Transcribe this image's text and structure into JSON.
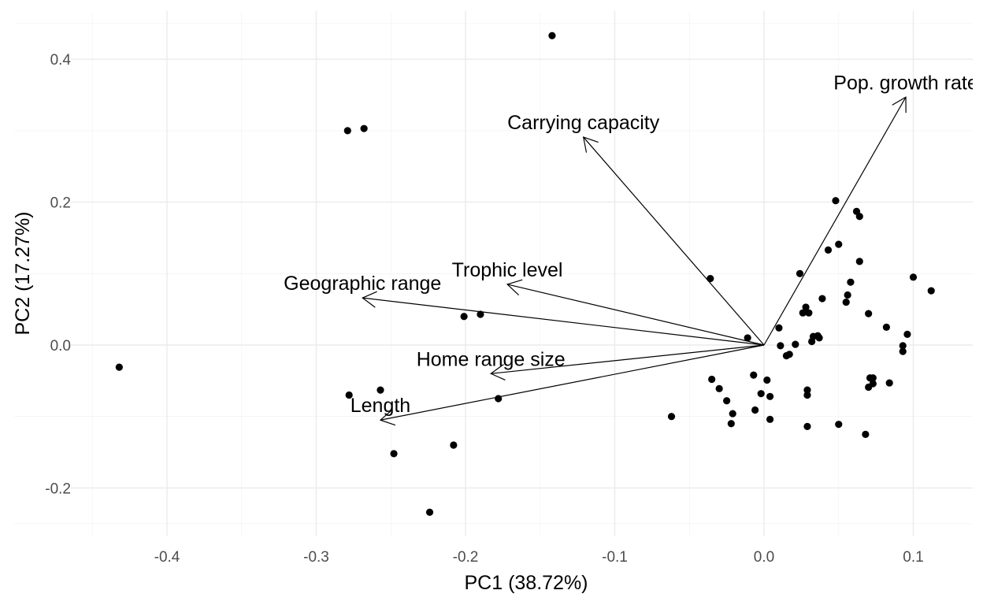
{
  "chart_data": {
    "type": "scatter",
    "title": "",
    "xlabel": "PC1 (38.72%)",
    "ylabel": "PC2 (17.27%)",
    "xlim": [
      -0.455,
      0.14
    ],
    "ylim": [
      -0.26,
      0.465
    ],
    "grid": true,
    "x_ticks": [
      -0.4,
      -0.3,
      -0.2,
      -0.1,
      0.0,
      0.1
    ],
    "x_tick_labels": [
      "-0.4",
      "-0.3",
      "-0.2",
      "-0.1",
      "0.0",
      "0.1"
    ],
    "y_ticks": [
      -0.2,
      0.0,
      0.2,
      0.4
    ],
    "y_tick_labels": [
      "-0.2",
      "0.0",
      "0.2",
      "0.4"
    ],
    "points": [
      [
        -0.142,
        0.433
      ],
      [
        -0.279,
        0.3
      ],
      [
        -0.268,
        0.303
      ],
      [
        -0.432,
        -0.031
      ],
      [
        -0.201,
        0.04
      ],
      [
        -0.19,
        0.043
      ],
      [
        -0.278,
        -0.07
      ],
      [
        -0.257,
        -0.063
      ],
      [
        -0.178,
        -0.075
      ],
      [
        -0.248,
        -0.152
      ],
      [
        -0.208,
        -0.14
      ],
      [
        -0.224,
        -0.234
      ],
      [
        -0.036,
        0.093
      ],
      [
        -0.062,
        -0.1
      ],
      [
        -0.011,
        0.01
      ],
      [
        -0.035,
        -0.048
      ],
      [
        -0.03,
        -0.061
      ],
      [
        -0.025,
        -0.078
      ],
      [
        -0.021,
        -0.096
      ],
      [
        -0.022,
        -0.11
      ],
      [
        -0.007,
        -0.042
      ],
      [
        -0.006,
        -0.091
      ],
      [
        -0.002,
        -0.068
      ],
      [
        0.002,
        -0.049
      ],
      [
        0.004,
        -0.072
      ],
      [
        0.004,
        -0.104
      ],
      [
        0.01,
        0.024
      ],
      [
        0.011,
        -0.001
      ],
      [
        0.015,
        -0.015
      ],
      [
        0.017,
        -0.013
      ],
      [
        0.021,
        0.001
      ],
      [
        0.024,
        0.1
      ],
      [
        0.026,
        0.045
      ],
      [
        0.028,
        0.053
      ],
      [
        0.03,
        0.045
      ],
      [
        0.032,
        0.005
      ],
      [
        0.033,
        0.012
      ],
      [
        0.036,
        0.013
      ],
      [
        0.037,
        0.01
      ],
      [
        0.039,
        0.065
      ],
      [
        0.029,
        -0.063
      ],
      [
        0.029,
        -0.07
      ],
      [
        0.029,
        -0.114
      ],
      [
        0.043,
        0.133
      ],
      [
        0.048,
        0.202
      ],
      [
        0.05,
        0.141
      ],
      [
        0.05,
        -0.111
      ],
      [
        0.055,
        0.06
      ],
      [
        0.056,
        0.07
      ],
      [
        0.058,
        0.088
      ],
      [
        0.062,
        0.187
      ],
      [
        0.064,
        0.18
      ],
      [
        0.064,
        0.117
      ],
      [
        0.068,
        -0.125
      ],
      [
        0.07,
        -0.059
      ],
      [
        0.07,
        0.044
      ],
      [
        0.071,
        -0.046
      ],
      [
        0.073,
        -0.054
      ],
      [
        0.073,
        -0.046
      ],
      [
        0.082,
        0.025
      ],
      [
        0.084,
        -0.053
      ],
      [
        0.093,
        -0.001
      ],
      [
        0.093,
        -0.009
      ],
      [
        0.096,
        0.015
      ],
      [
        0.1,
        0.095
      ],
      [
        0.112,
        0.076
      ]
    ],
    "loadings": [
      {
        "label": "Pop. growth rate",
        "x": 0.095,
        "y": 0.347
      },
      {
        "label": "Carrying capacity",
        "x": -0.121,
        "y": 0.291
      },
      {
        "label": "Trophic level",
        "x": -0.172,
        "y": 0.085
      },
      {
        "label": "Geographic range",
        "x": -0.269,
        "y": 0.066
      },
      {
        "label": "Home range size",
        "x": -0.183,
        "y": -0.04
      },
      {
        "label": "Length",
        "x": -0.257,
        "y": -0.105
      }
    ]
  }
}
